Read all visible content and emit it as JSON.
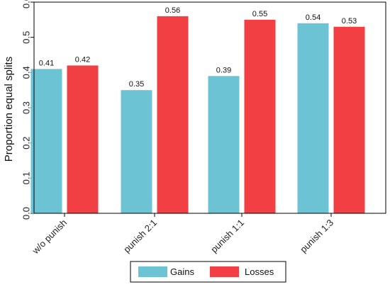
{
  "chart_data": {
    "type": "bar",
    "title": "",
    "xlabel": "",
    "ylabel": "Proportion equal splits",
    "ylim": [
      0,
      0.6
    ],
    "yticks": [
      0.0,
      0.1,
      0.2,
      0.3,
      0.4,
      0.5,
      0.6
    ],
    "ytick_labels": [
      "0.0",
      "0.1",
      "0.2",
      "0.3",
      "0.4",
      "0.5",
      "0.6"
    ],
    "categories": [
      "w/o punish",
      "punish 2:1",
      "punish 1:1",
      "punish 1:3"
    ],
    "series": [
      {
        "name": "Gains",
        "color": "#6cc3d3",
        "values": [
          0.41,
          0.35,
          0.39,
          0.54
        ],
        "labels": [
          "0.41",
          "0.35",
          "0.39",
          "0.54"
        ]
      },
      {
        "name": "Losses",
        "color": "#f23f43",
        "values": [
          0.42,
          0.56,
          0.55,
          0.53
        ],
        "labels": [
          "0.42",
          "0.56",
          "0.55",
          "0.53"
        ]
      }
    ],
    "grid": false,
    "legend_position": "bottom"
  }
}
